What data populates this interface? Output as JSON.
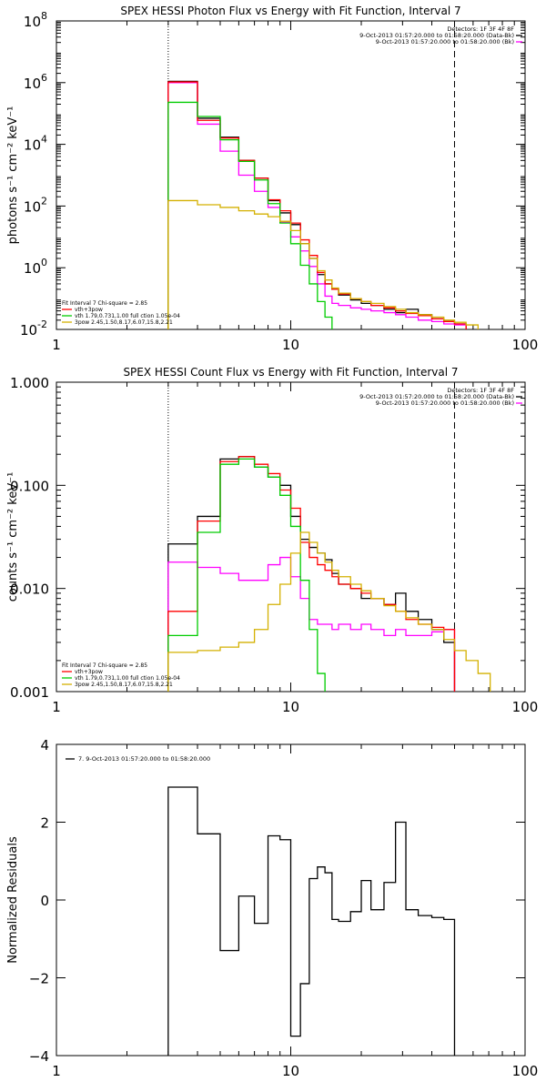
{
  "colors": {
    "data": "#000000",
    "background": "#ff00ff",
    "total": "#ff0000",
    "thermal": "#00cc00",
    "powerlaw": "#d4b000"
  },
  "chart_data": [
    {
      "type": "line",
      "title": "SPEX HESSI Photon Flux vs Energy with Fit Function, Interval 7",
      "xlabel": "",
      "ylabel": "photons s⁻¹ cm⁻² keV⁻¹",
      "x_scale": "log",
      "y_scale": "log",
      "xlim": [
        1,
        100
      ],
      "ylim": [
        0.01,
        100000000
      ],
      "x_ticks": [
        {
          "v": 1,
          "label": "1"
        },
        {
          "v": 10,
          "label": "10"
        },
        {
          "v": 100,
          "label": "100"
        }
      ],
      "y_ticks": [
        {
          "v": 0.01,
          "base": "10",
          "exp": "-2"
        },
        {
          "v": 1,
          "base": "10",
          "exp": "0"
        },
        {
          "v": 100,
          "base": "10",
          "exp": "2"
        },
        {
          "v": 10000,
          "base": "10",
          "exp": "4"
        },
        {
          "v": 1000000,
          "base": "10",
          "exp": "6"
        },
        {
          "v": 100000000,
          "base": "10",
          "exp": "8"
        }
      ],
      "vlines": [
        {
          "x": 3.0,
          "style": "dotted"
        },
        {
          "x": 50.0,
          "style": "dashed"
        }
      ],
      "legend_top": [
        "Detectors: 1F 3F 4F 8F",
        "9-Oct-2013 01:57:20.000 to 01:58:20.000 (Data-Bk)",
        "9-Oct-2013 01:57:20.000 to 01:58:20.000 (Bk)"
      ],
      "legend_top_colors": [
        "",
        "#000000",
        "#ff00ff"
      ],
      "legend_bottom": [
        "Fit Interval 7   Chi-square = 2.85",
        "vth+3pow",
        "vth 1.79,0.731,1.00  full ction 1.05e-04",
        "3pow 2.45,1.50,8.17,6.07,15.8,2.21"
      ],
      "legend_bottom_colors": [
        "",
        "#ff0000",
        "#00cc00",
        "#d4b000"
      ],
      "edges": [
        3.0,
        4.0,
        5.0,
        6.0,
        7.0,
        8.0,
        9.0,
        10.0,
        11.0,
        12.0,
        13.0,
        14.0,
        15.0,
        16.0,
        18.0,
        20.0,
        22.0,
        25.0,
        28.0,
        31.0,
        35.0,
        40.0,
        45.0,
        50.0,
        56.0,
        63.0
      ],
      "series": [
        {
          "key": "data",
          "color": "#000000",
          "values": [
            1100000,
            70000,
            17000,
            3000,
            800,
            150,
            60,
            25,
            6,
            2,
            0.6,
            0.3,
            0.2,
            0.13,
            0.09,
            0.07,
            0.06,
            0.045,
            0.035,
            0.045,
            0.03,
            0.022,
            0.018,
            0.015,
            null
          ]
        },
        {
          "key": "background",
          "color": "#ff00ff",
          "values": [
            1000000,
            45000,
            6000,
            1000,
            300,
            90,
            30,
            10,
            3.5,
            1.1,
            0.3,
            0.12,
            0.07,
            0.06,
            0.05,
            0.045,
            0.04,
            0.035,
            0.03,
            0.025,
            0.02,
            0.018,
            0.015,
            0.014,
            null
          ]
        },
        {
          "key": "total",
          "color": "#ff0000",
          "values": [
            1050000,
            60000,
            16000,
            3000,
            800,
            160,
            70,
            28,
            8,
            2.5,
            0.7,
            0.3,
            0.2,
            0.14,
            0.1,
            0.08,
            0.06,
            0.05,
            0.04,
            0.033,
            0.028,
            0.022,
            0.018,
            0.015,
            null
          ]
        },
        {
          "key": "thermal",
          "color": "#00cc00",
          "values": [
            230000,
            80000,
            14000,
            2800,
            700,
            120,
            28,
            6,
            1.2,
            0.3,
            0.08,
            0.025,
            0.01,
            null,
            null,
            null,
            null,
            null,
            null,
            null,
            null,
            null,
            null,
            null,
            null
          ]
        },
        {
          "key": "powerlaw",
          "color": "#d4b000",
          "values": [
            150,
            110,
            90,
            70,
            55,
            45,
            32,
            16,
            6,
            2,
            0.8,
            0.4,
            0.22,
            0.15,
            0.1,
            0.08,
            0.07,
            0.055,
            0.045,
            0.035,
            0.03,
            0.025,
            0.02,
            0.017,
            0.014
          ]
        }
      ]
    },
    {
      "type": "line",
      "title": "SPEX HESSI Count Flux vs Energy with Fit Function, Interval 7",
      "xlabel": "",
      "ylabel": "counts s⁻¹ cm⁻² keV⁻¹",
      "x_scale": "log",
      "y_scale": "log",
      "xlim": [
        1,
        100
      ],
      "ylim": [
        0.001,
        1.0
      ],
      "x_ticks": [
        {
          "v": 1,
          "label": "1"
        },
        {
          "v": 10,
          "label": "10"
        },
        {
          "v": 100,
          "label": "100"
        }
      ],
      "y_ticks": [
        {
          "v": 0.001,
          "label": "0.001"
        },
        {
          "v": 0.01,
          "label": "0.010"
        },
        {
          "v": 0.1,
          "label": "0.100"
        },
        {
          "v": 1.0,
          "label": "1.000"
        }
      ],
      "vlines": [
        {
          "x": 3.0,
          "style": "dotted"
        },
        {
          "x": 50.0,
          "style": "dashed"
        }
      ],
      "legend_top": [
        "Detectors: 1F 3F 4F 8F",
        "9-Oct-2013 01:57:20.000 to 01:58:20.000 (Data-Bk)",
        "9-Oct-2013 01:57:20.000 to 01:58:20.000 (Bk)"
      ],
      "legend_top_colors": [
        "",
        "#000000",
        "#ff00ff"
      ],
      "legend_bottom": [
        "Fit Interval 7   Chi-square = 2.85",
        "vth+3pow",
        "vth 1.79,0.731,1.00  full ction 1.05e-04",
        "3pow 2.45,1.50,8.17,6.07,15.8,2.21"
      ],
      "legend_bottom_colors": [
        "",
        "#ff0000",
        "#00cc00",
        "#d4b000"
      ],
      "edges": [
        3.0,
        4.0,
        5.0,
        6.0,
        7.0,
        8.0,
        9.0,
        10.0,
        11.0,
        12.0,
        13.0,
        14.0,
        15.0,
        16.0,
        18.0,
        20.0,
        22.0,
        25.0,
        28.0,
        31.0,
        35.0,
        40.0,
        45.0,
        50.0,
        56.0,
        63.0,
        71.0,
        80.0
      ],
      "series": [
        {
          "key": "data",
          "color": "#000000",
          "values": [
            0.027,
            0.05,
            0.18,
            0.19,
            0.15,
            0.12,
            0.1,
            0.05,
            0.03,
            0.025,
            0.022,
            0.019,
            0.014,
            0.011,
            0.01,
            0.008,
            0.008,
            0.007,
            0.009,
            0.006,
            0.005,
            0.004,
            0.003,
            null,
            null,
            null,
            null
          ]
        },
        {
          "key": "background",
          "color": "#ff00ff",
          "values": [
            0.018,
            0.016,
            0.014,
            0.012,
            0.012,
            0.017,
            0.02,
            0.013,
            0.008,
            0.005,
            0.0045,
            0.0045,
            0.004,
            0.0045,
            0.004,
            0.0045,
            0.004,
            0.0035,
            0.004,
            0.0035,
            0.0035,
            0.0038,
            0.004,
            null,
            null,
            null,
            null
          ]
        },
        {
          "key": "total",
          "color": "#ff0000",
          "values": [
            0.006,
            0.045,
            0.17,
            0.19,
            0.16,
            0.13,
            0.09,
            0.06,
            0.028,
            0.02,
            0.017,
            0.015,
            0.013,
            0.011,
            0.01,
            0.009,
            0.008,
            0.007,
            0.006,
            0.005,
            0.0045,
            0.0042,
            0.004,
            null,
            null,
            null,
            null
          ]
        },
        {
          "key": "thermal",
          "color": "#00cc00",
          "values": [
            0.0035,
            0.035,
            0.16,
            0.18,
            0.15,
            0.12,
            0.08,
            0.04,
            0.012,
            0.004,
            0.0015,
            null,
            null,
            null,
            null,
            null,
            null,
            null,
            null,
            null,
            null,
            null,
            null,
            null,
            null,
            null,
            null
          ]
        },
        {
          "key": "powerlaw",
          "color": "#d4b000",
          "values": [
            0.0024,
            0.0025,
            0.0027,
            0.003,
            0.004,
            0.007,
            0.011,
            0.022,
            0.035,
            0.028,
            0.022,
            0.018,
            0.015,
            0.013,
            0.011,
            0.0095,
            0.008,
            0.0068,
            0.006,
            0.0052,
            0.0045,
            0.004,
            0.0032,
            0.0025,
            0.002,
            0.0015,
            0.001
          ]
        }
      ]
    },
    {
      "type": "line",
      "title": "",
      "xlabel": "",
      "ylabel": "Normalized Residuals",
      "x_scale": "log",
      "y_scale": "linear",
      "xlim": [
        1,
        100
      ],
      "ylim": [
        -4,
        4
      ],
      "x_ticks": [
        {
          "v": 1,
          "label": "1"
        },
        {
          "v": 10,
          "label": "10"
        },
        {
          "v": 100,
          "label": "100"
        }
      ],
      "y_ticks": [
        {
          "v": -4,
          "label": "−4"
        },
        {
          "v": -2,
          "label": "−2"
        },
        {
          "v": 0,
          "label": "0"
        },
        {
          "v": 2,
          "label": "2"
        },
        {
          "v": 4,
          "label": "4"
        }
      ],
      "legend_top": [
        "7.  9-Oct-2013 01:57:20.000 to 01:58:20.000"
      ],
      "edges": [
        3.0,
        4.0,
        5.0,
        6.0,
        7.0,
        8.0,
        9.0,
        10.0,
        11.0,
        12.0,
        13.0,
        14.0,
        15.0,
        16.0,
        18.0,
        20.0,
        22.0,
        25.0,
        28.0,
        31.0,
        35.0,
        40.0,
        45.0,
        50.0
      ],
      "series": [
        {
          "key": "residuals",
          "color": "#000000",
          "values": [
            2.9,
            1.7,
            -1.3,
            0.1,
            -0.6,
            1.65,
            1.55,
            -3.5,
            -2.15,
            0.55,
            0.85,
            0.7,
            -0.5,
            -0.55,
            -0.3,
            0.5,
            -0.25,
            0.45,
            2.0,
            -0.25,
            -0.4,
            -0.45,
            -0.5
          ]
        }
      ]
    }
  ]
}
